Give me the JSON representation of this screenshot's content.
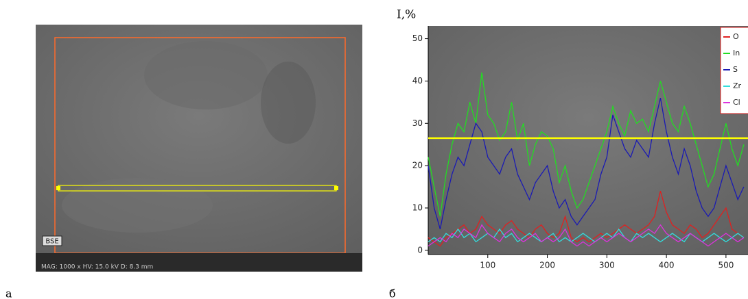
{
  "image_panel": {
    "badge": "BSE",
    "info": "MAG: 1000 x   HV: 15.0 kV   D: 8.3 mm",
    "label": "а"
  },
  "chart_data": {
    "type": "line",
    "panel_label": "б",
    "y_label": "I,%",
    "x": [
      0,
      10,
      20,
      30,
      40,
      50,
      60,
      70,
      80,
      90,
      100,
      110,
      120,
      130,
      140,
      150,
      160,
      170,
      180,
      190,
      200,
      210,
      220,
      230,
      240,
      250,
      260,
      270,
      280,
      290,
      300,
      310,
      320,
      330,
      340,
      350,
      360,
      370,
      380,
      390,
      400,
      410,
      420,
      430,
      440,
      450,
      460,
      470,
      480,
      490,
      500,
      510,
      520,
      530
    ],
    "series": [
      {
        "name": "O",
        "color": "#e02020",
        "values": [
          3,
          2,
          1,
          3,
          4,
          5,
          6,
          4,
          5,
          8,
          6,
          5,
          4,
          6,
          7,
          5,
          4,
          3,
          5,
          6,
          4,
          3,
          4,
          8,
          3,
          2,
          3,
          2,
          3,
          4,
          3,
          4,
          5,
          6,
          5,
          4,
          5,
          6,
          8,
          14,
          9,
          6,
          5,
          4,
          6,
          5,
          3,
          4,
          6,
          8,
          10,
          5,
          4,
          3
        ]
      },
      {
        "name": "In",
        "color": "#22dd22",
        "values": [
          22,
          15,
          8,
          18,
          25,
          30,
          28,
          35,
          30,
          42,
          32,
          30,
          26,
          28,
          35,
          26,
          30,
          20,
          25,
          28,
          27,
          24,
          16,
          20,
          14,
          10,
          12,
          16,
          20,
          24,
          28,
          34,
          30,
          27,
          33,
          30,
          31,
          28,
          34,
          40,
          35,
          30,
          28,
          34,
          30,
          25,
          20,
          15,
          18,
          24,
          30,
          24,
          20,
          25
        ]
      },
      {
        "name": "S",
        "color": "#1a1ab4",
        "values": [
          20,
          10,
          5,
          12,
          18,
          22,
          20,
          25,
          30,
          28,
          22,
          20,
          18,
          22,
          24,
          18,
          15,
          12,
          16,
          18,
          20,
          14,
          10,
          12,
          8,
          6,
          8,
          10,
          12,
          18,
          22,
          32,
          28,
          24,
          22,
          26,
          24,
          22,
          30,
          36,
          28,
          22,
          18,
          24,
          20,
          14,
          10,
          8,
          10,
          15,
          20,
          16,
          12,
          15
        ]
      },
      {
        "name": "Zr",
        "color": "#33dddd",
        "values": [
          2,
          3,
          2,
          4,
          3,
          5,
          3,
          4,
          2,
          3,
          4,
          3,
          5,
          3,
          4,
          2,
          3,
          4,
          3,
          2,
          3,
          4,
          2,
          3,
          2,
          3,
          4,
          3,
          2,
          3,
          4,
          3,
          5,
          3,
          2,
          4,
          3,
          4,
          3,
          2,
          3,
          4,
          3,
          2,
          4,
          3,
          2,
          3,
          4,
          3,
          2,
          3,
          4,
          3
        ]
      },
      {
        "name": "Cl",
        "color": "#dd33dd",
        "values": [
          1,
          2,
          3,
          2,
          4,
          3,
          5,
          4,
          3,
          6,
          4,
          3,
          2,
          4,
          5,
          3,
          2,
          3,
          4,
          2,
          3,
          2,
          3,
          5,
          2,
          1,
          2,
          1,
          2,
          3,
          2,
          3,
          4,
          3,
          2,
          3,
          4,
          5,
          4,
          6,
          4,
          3,
          2,
          3,
          4,
          3,
          2,
          1,
          2,
          3,
          4,
          3,
          2,
          3
        ]
      }
    ],
    "hline": {
      "value": 26.5,
      "color": "#ffff00"
    },
    "xlim": [
      0,
      537
    ],
    "ylim": [
      -1,
      53
    ],
    "xticks": [
      100,
      200,
      300,
      400,
      500
    ],
    "yticks": [
      0,
      10,
      20,
      30,
      40,
      50
    ],
    "legend": "top-right"
  }
}
